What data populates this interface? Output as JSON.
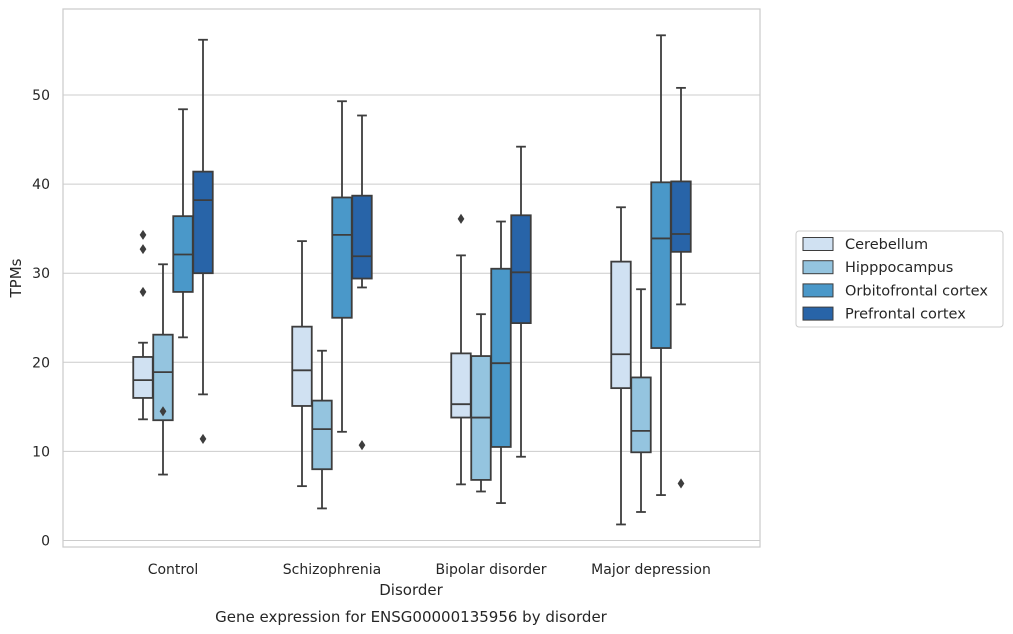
{
  "chart_data": {
    "type": "box",
    "caption": "Gene expression for ENSG00000135956 by disorder",
    "xlabel": "Disorder",
    "ylabel": "TPMs",
    "ylim": [
      -1,
      60
    ],
    "yticks": [
      0,
      10,
      20,
      30,
      40,
      50
    ],
    "grid": "horizontal",
    "legend_position": "right",
    "categories": [
      "Control",
      "Schizophrenia",
      "Bipolar disorder",
      "Major depression"
    ],
    "series": [
      {
        "name": "Cerebellum",
        "color": "#d0e1f2",
        "boxes": [
          {
            "whisker_low": 13.6,
            "q1": 16.0,
            "median": 18.0,
            "q3": 20.6,
            "whisker_high": 22.2,
            "outliers": [
              27.9,
              32.7,
              34.3
            ]
          },
          {
            "whisker_low": 6.1,
            "q1": 15.1,
            "median": 19.1,
            "q3": 24.0,
            "whisker_high": 33.6,
            "outliers": []
          },
          {
            "whisker_low": 6.3,
            "q1": 13.8,
            "median": 15.3,
            "q3": 21.0,
            "whisker_high": 32.0,
            "outliers": [
              36.1
            ]
          },
          {
            "whisker_low": 1.8,
            "q1": 17.1,
            "median": 20.9,
            "q3": 31.3,
            "whisker_high": 37.4,
            "outliers": []
          }
        ]
      },
      {
        "name": "Hipppocampus",
        "color": "#94c4df",
        "boxes": [
          {
            "whisker_low": 7.4,
            "q1": 13.5,
            "median": 18.9,
            "q3": 23.1,
            "whisker_high": 31.0,
            "outliers": [
              14.5
            ]
          },
          {
            "whisker_low": 3.6,
            "q1": 8.0,
            "median": 12.5,
            "q3": 15.7,
            "whisker_high": 21.3,
            "outliers": []
          },
          {
            "whisker_low": 5.5,
            "q1": 6.8,
            "median": 13.8,
            "q3": 20.7,
            "whisker_high": 25.4,
            "outliers": []
          },
          {
            "whisker_low": 3.2,
            "q1": 9.9,
            "median": 12.3,
            "q3": 18.3,
            "whisker_high": 28.2,
            "outliers": []
          }
        ]
      },
      {
        "name": "Orbitofrontal cortex",
        "color": "#4a98c9",
        "boxes": [
          {
            "whisker_low": 22.8,
            "q1": 27.9,
            "median": 32.1,
            "q3": 36.4,
            "whisker_high": 48.4,
            "outliers": []
          },
          {
            "whisker_low": 12.2,
            "q1": 25.0,
            "median": 34.3,
            "q3": 38.5,
            "whisker_high": 49.3,
            "outliers": []
          },
          {
            "whisker_low": 4.2,
            "q1": 10.5,
            "median": 19.9,
            "q3": 30.5,
            "whisker_high": 35.8,
            "outliers": []
          },
          {
            "whisker_low": 5.1,
            "q1": 21.6,
            "median": 33.9,
            "q3": 40.2,
            "whisker_high": 56.7,
            "outliers": []
          }
        ]
      },
      {
        "name": "Prefrontal cortex",
        "color": "#2864a8",
        "boxes": [
          {
            "whisker_low": 16.4,
            "q1": 30.0,
            "median": 38.2,
            "q3": 41.4,
            "whisker_high": 56.2,
            "outliers": [
              11.4
            ]
          },
          {
            "whisker_low": 28.4,
            "q1": 29.4,
            "median": 31.9,
            "q3": 38.7,
            "whisker_high": 47.7,
            "outliers": [
              10.7
            ]
          },
          {
            "whisker_low": 9.4,
            "q1": 24.4,
            "median": 30.1,
            "q3": 36.5,
            "whisker_high": 44.2,
            "outliers": []
          },
          {
            "whisker_low": 26.5,
            "q1": 32.4,
            "median": 34.4,
            "q3": 40.3,
            "whisker_high": 50.8,
            "outliers": [
              6.4
            ]
          }
        ]
      }
    ]
  }
}
